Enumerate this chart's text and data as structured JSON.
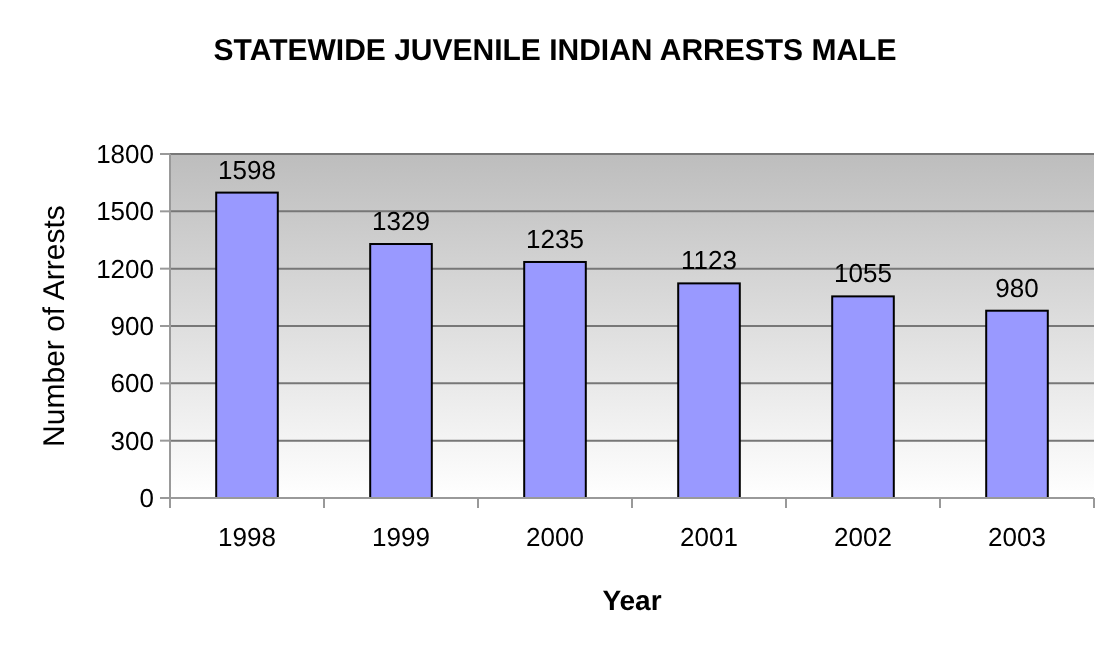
{
  "chart_data": {
    "type": "bar",
    "title": "STATEWIDE JUVENILE INDIAN ARRESTS MALE",
    "xlabel": "Year",
    "ylabel": "Number of Arrests",
    "categories": [
      "1998",
      "1999",
      "2000",
      "2001",
      "2002",
      "2003"
    ],
    "values": [
      1598,
      1329,
      1235,
      1123,
      1055,
      980
    ],
    "color": "#9999ff",
    "ylim": [
      0,
      1800
    ],
    "yticks": [
      0,
      300,
      600,
      900,
      1200,
      1500,
      1800
    ],
    "grid": "y",
    "data_labels": true
  }
}
